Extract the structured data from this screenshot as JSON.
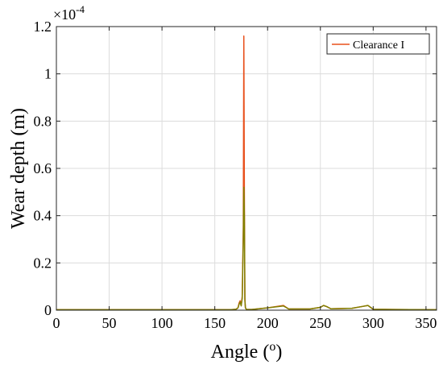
{
  "chart_data": {
    "type": "line",
    "xlabel": "Angle (",
    "xlabel_sup": "o",
    "xlabel_close": ")",
    "ylabel": "Wear depth (m)",
    "y_exponent_prefix": "×10",
    "y_exponent": "-4",
    "xlim": [
      0,
      360
    ],
    "ylim": [
      0,
      1.2
    ],
    "y_scale_factor": "1e-4",
    "xticks": [
      0,
      50,
      100,
      150,
      200,
      250,
      300,
      350
    ],
    "yticks": [
      0,
      0.2,
      0.4,
      0.6,
      0.8,
      1,
      1.2
    ],
    "xtick_labels": [
      "0",
      "50",
      "100",
      "150",
      "200",
      "250",
      "300",
      "350"
    ],
    "ytick_labels": [
      "0",
      "0.2",
      "0.4",
      "0.6",
      "0.8",
      "1",
      "1.2"
    ],
    "grid": true,
    "legend_position": "top-right",
    "series": [
      {
        "name": "Clearance I",
        "color": "#e8501c",
        "x": [
          0,
          165,
          170,
          172,
          173,
          174,
          175,
          176,
          177,
          177.5,
          178,
          178.5,
          179,
          180,
          185,
          200,
          215,
          220,
          240,
          250,
          253,
          256,
          260,
          280,
          290,
          295,
          300,
          320,
          360
        ],
        "y": [
          0.002,
          0.002,
          0.004,
          0.01,
          0.03,
          0.04,
          0.02,
          0.06,
          0.35,
          1.16,
          0.5,
          0.05,
          0.01,
          0.003,
          0.003,
          0.01,
          0.02,
          0.005,
          0.005,
          0.012,
          0.02,
          0.015,
          0.006,
          0.008,
          0.016,
          0.02,
          0.004,
          0.003,
          0.002
        ]
      },
      {
        "color": "#808000",
        "x": [
          0,
          165,
          170,
          172,
          173,
          174,
          175,
          176,
          177,
          177.5,
          178,
          178.5,
          179,
          180,
          185,
          200,
          215,
          220,
          240,
          250,
          253,
          256,
          260,
          280,
          290,
          295,
          300,
          320,
          360
        ],
        "y": [
          0.002,
          0.002,
          0.004,
          0.01,
          0.025,
          0.035,
          0.018,
          0.05,
          0.3,
          0.52,
          0.4,
          0.04,
          0.01,
          0.003,
          0.003,
          0.01,
          0.018,
          0.005,
          0.005,
          0.012,
          0.02,
          0.015,
          0.006,
          0.008,
          0.016,
          0.02,
          0.004,
          0.003,
          0.002
        ]
      }
    ]
  }
}
